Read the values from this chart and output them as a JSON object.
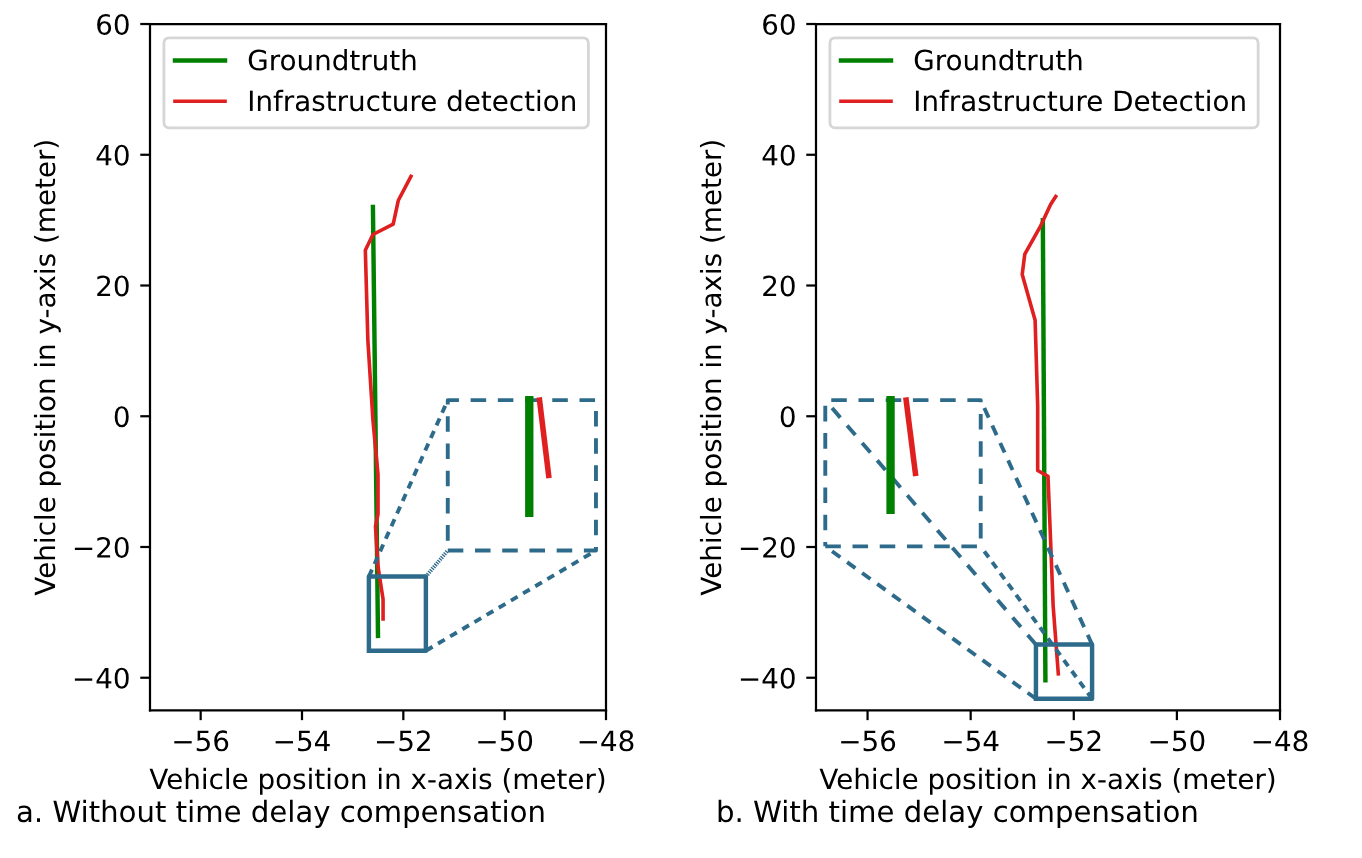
{
  "chart_data": [
    {
      "type": "line",
      "xlabel": "Vehicle position in x-axis (meter)",
      "ylabel": "Vehicle position in y-axis (meter)",
      "xlim": [
        -57,
        -48
      ],
      "ylim": [
        -45,
        60
      ],
      "xticks": [
        -56,
        -54,
        -52,
        -50,
        -48
      ],
      "yticks": [
        -40,
        -20,
        0,
        20,
        40,
        60
      ],
      "legend": "top left",
      "annotations": [
        "a. Without time delay compensation"
      ],
      "series": [
        {
          "name": "Groundtruth",
          "color": "#008000",
          "x": [
            -52.6,
            -52.5
          ],
          "values": [
            32,
            -33.6
          ]
        },
        {
          "name": "Infrastructure detection",
          "color": "#e02020",
          "x": [
            -51.85,
            -52.1,
            -52.2,
            -52.6,
            -52.75,
            -52.7,
            -52.6,
            -52.5,
            -52.5,
            -52.55,
            -52.5,
            -52.4,
            -52.4
          ],
          "values": [
            36.7,
            33,
            29.4,
            27.8,
            25.4,
            11.6,
            -0.6,
            -8.9,
            -15,
            -16.8,
            -23,
            -28,
            -31
          ]
        }
      ]
    },
    {
      "type": "line",
      "xlabel": "Vehicle position in x-axis (meter)",
      "ylabel": "Vehicle position in y-axis (meter)",
      "xlim": [
        -57,
        -48
      ],
      "ylim": [
        -45,
        60
      ],
      "xticks": [
        -56,
        -54,
        -52,
        -50,
        -48
      ],
      "yticks": [
        -40,
        -20,
        0,
        20,
        40,
        60
      ],
      "legend": "top left",
      "annotations": [
        "b. With time delay compensation"
      ],
      "series": [
        {
          "name": "Groundtruth",
          "color": "#008000",
          "x": [
            -52.6,
            -52.55
          ],
          "values": [
            30,
            -40.4
          ]
        },
        {
          "name": "Infrastructure Detection",
          "color": "#e02020",
          "x": [
            -52.35,
            -52.45,
            -52.65,
            -52.95,
            -53,
            -52.75,
            -52.7,
            -52.7,
            -52.5,
            -52.45,
            -52.4,
            -52.3
          ],
          "values": [
            33.6,
            32.4,
            29,
            24.8,
            21.7,
            14.7,
            1.5,
            -8.3,
            -9.2,
            -19,
            -29,
            -39.4
          ]
        }
      ]
    }
  ]
}
